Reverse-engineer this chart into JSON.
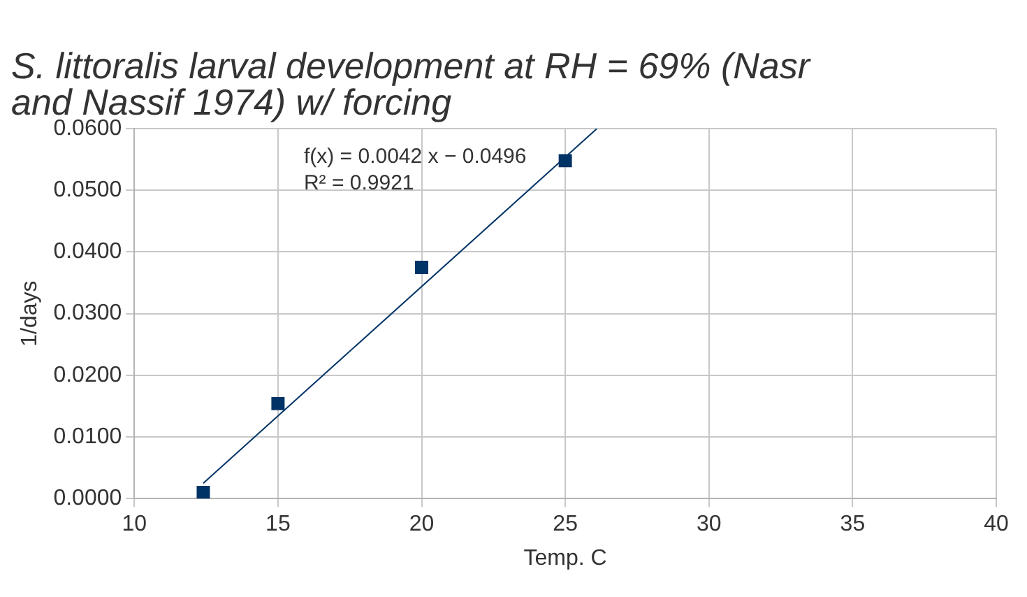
{
  "chart_data": {
    "type": "scatter",
    "title": "S. littoralis larval development at RH = 69% (Nasr and Nassif 1974) w/ forcing",
    "xlabel": "Temp. C",
    "ylabel": "1/days",
    "series": [
      {
        "type": "scatter",
        "color": "#003366",
        "marker": "square",
        "x": [
          12.4,
          15,
          20,
          25
        ],
        "values": [
          0.001,
          0.0154,
          0.0375,
          0.0548
        ]
      },
      {
        "type": "line",
        "color": "#003366",
        "marker": "none",
        "x": [
          12.4,
          26.1
        ],
        "values": [
          0.0025,
          0.06
        ]
      }
    ],
    "annotations": [
      "f(x) = 0.0042 x − 0.0496",
      "R² = 0.9921"
    ],
    "xlim": [
      10,
      40
    ],
    "xticks": [
      10,
      15,
      20,
      25,
      30,
      35,
      40
    ],
    "ylim": [
      0,
      0.06
    ],
    "yticks": [
      {
        "value": 0,
        "label": "0.0000"
      },
      {
        "value": 0.01,
        "label": "0.0100"
      },
      {
        "value": 0.02,
        "label": "0.0200"
      },
      {
        "value": 0.03,
        "label": "0.0300"
      },
      {
        "value": 0.04,
        "label": "0.0400"
      },
      {
        "value": 0.05,
        "label": "0.0500"
      },
      {
        "value": 0.06,
        "label": "0.0600"
      }
    ],
    "grid": true,
    "legend": false
  }
}
